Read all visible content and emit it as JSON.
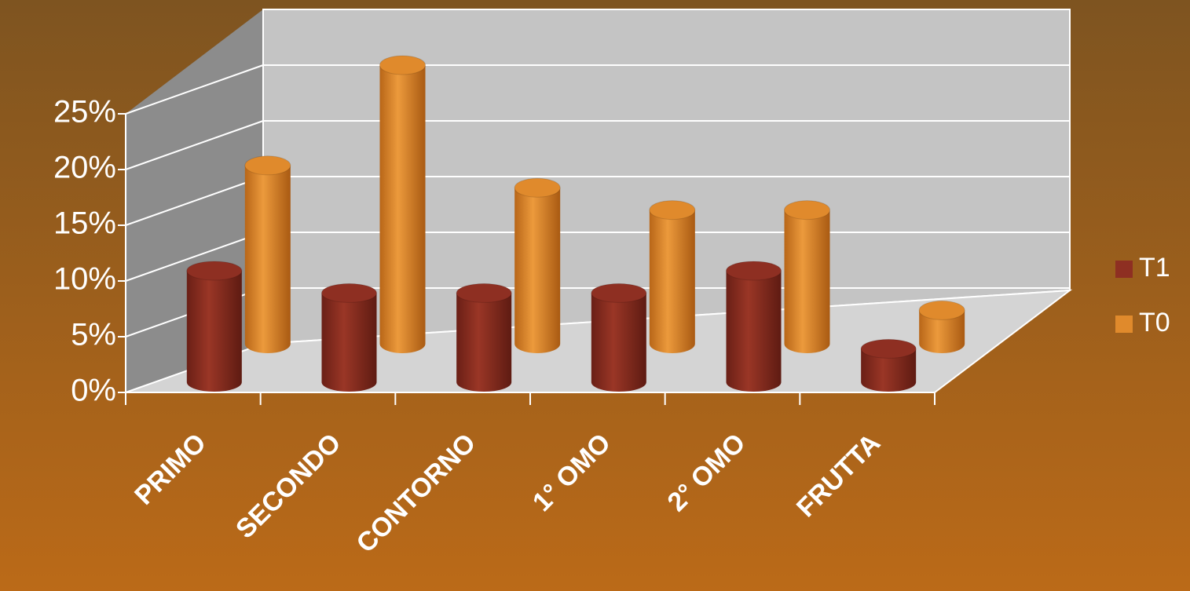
{
  "chart_data": {
    "type": "bar3d",
    "categories": [
      "PRIMO",
      "SECONDO",
      "CONTORNO",
      "1° OMO",
      "2° OMO",
      "FRUTTA"
    ],
    "series": [
      {
        "name": "T1",
        "color": "#8e2f22",
        "values": [
          10,
          8,
          8,
          8,
          10,
          3
        ]
      },
      {
        "name": "T0",
        "color": "#e08a2c",
        "values": [
          16,
          25,
          14,
          12,
          12,
          3
        ]
      }
    ],
    "ylim": [
      0,
      25
    ],
    "yticks": [
      {
        "value": 0,
        "label": "0%"
      },
      {
        "value": 5,
        "label": "5%"
      },
      {
        "value": 10,
        "label": "10%"
      },
      {
        "value": 15,
        "label": "15%"
      },
      {
        "value": 20,
        "label": "20%"
      },
      {
        "value": 25,
        "label": "25%"
      }
    ],
    "grid": true,
    "legend": "right"
  }
}
